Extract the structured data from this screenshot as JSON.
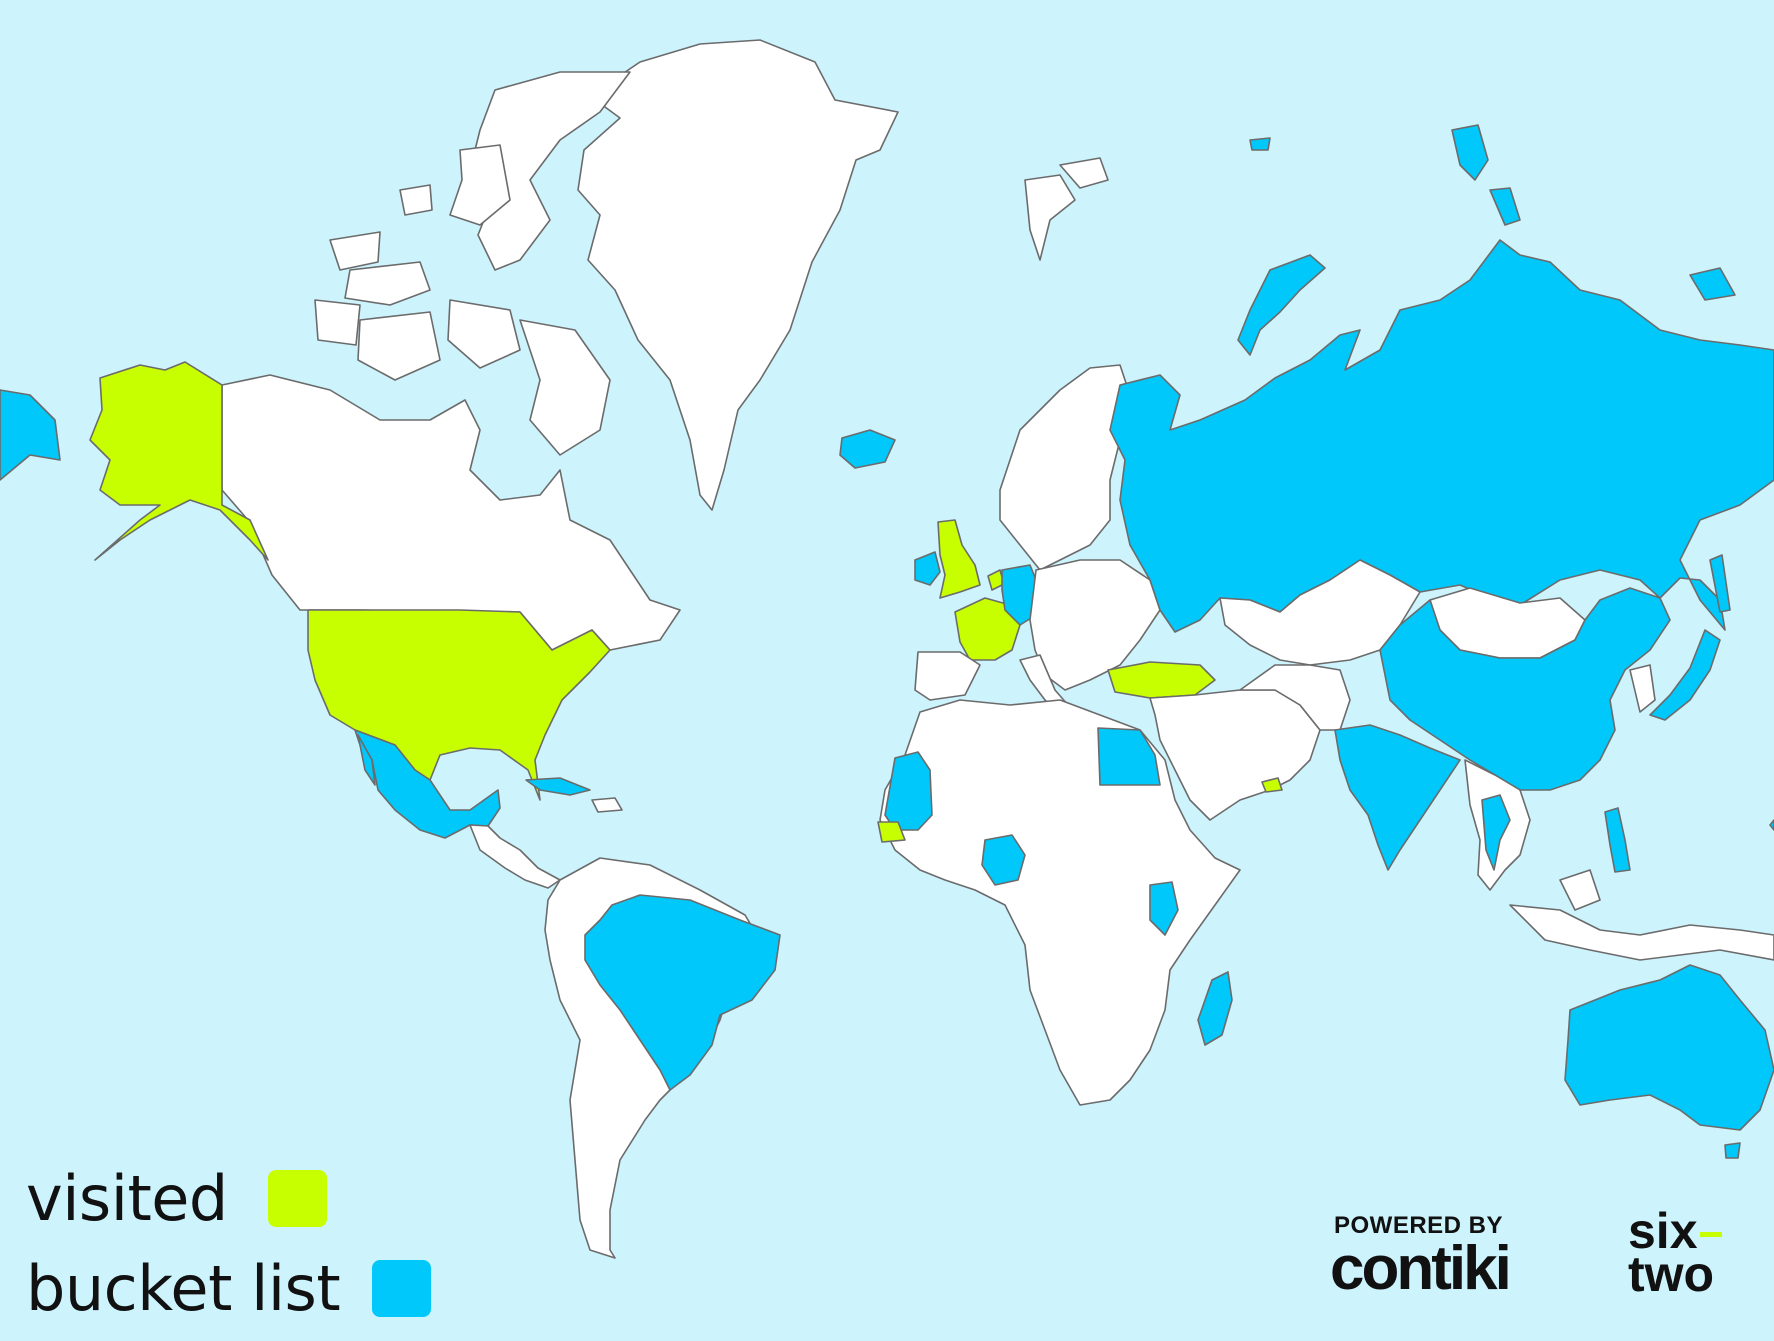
{
  "legend": {
    "visited": {
      "label": "visited",
      "color": "#c8ff00"
    },
    "bucket": {
      "label": "bucket list",
      "color": "#00c8fa"
    }
  },
  "branding": {
    "powered_by": "POWERED BY",
    "company": "contiki",
    "partner_line1": "six",
    "partner_line2": "two"
  },
  "colors": {
    "ocean": "#cdf3fd",
    "unvisited": "#ffffff",
    "border": "#6b6b6b"
  },
  "regions": [
    {
      "name": "Alaska (United States)",
      "status": "visited"
    },
    {
      "name": "United States",
      "status": "visited"
    },
    {
      "name": "Canada",
      "status": "none"
    },
    {
      "name": "Greenland",
      "status": "none"
    },
    {
      "name": "Mexico",
      "status": "bucket"
    },
    {
      "name": "Cuba",
      "status": "bucket"
    },
    {
      "name": "Brazil",
      "status": "bucket"
    },
    {
      "name": "Iceland",
      "status": "bucket"
    },
    {
      "name": "Ireland",
      "status": "bucket"
    },
    {
      "name": "United Kingdom",
      "status": "visited"
    },
    {
      "name": "France",
      "status": "visited"
    },
    {
      "name": "Netherlands",
      "status": "visited"
    },
    {
      "name": "Germany",
      "status": "bucket"
    },
    {
      "name": "Turkey",
      "status": "visited"
    },
    {
      "name": "Russia",
      "status": "bucket"
    },
    {
      "name": "China",
      "status": "bucket"
    },
    {
      "name": "Mongolia",
      "status": "none"
    },
    {
      "name": "Kazakhstan",
      "status": "none"
    },
    {
      "name": "India",
      "status": "bucket"
    },
    {
      "name": "Japan",
      "status": "bucket"
    },
    {
      "name": "Thailand",
      "status": "bucket"
    },
    {
      "name": "Philippines",
      "status": "bucket"
    },
    {
      "name": "Australia",
      "status": "bucket"
    },
    {
      "name": "Egypt",
      "status": "bucket"
    },
    {
      "name": "Mauritania",
      "status": "bucket"
    },
    {
      "name": "Senegal",
      "status": "visited"
    },
    {
      "name": "Nigeria",
      "status": "bucket"
    },
    {
      "name": "Kenya",
      "status": "bucket"
    },
    {
      "name": "Madagascar",
      "status": "bucket"
    },
    {
      "name": "United Arab Emirates",
      "status": "visited"
    }
  ]
}
